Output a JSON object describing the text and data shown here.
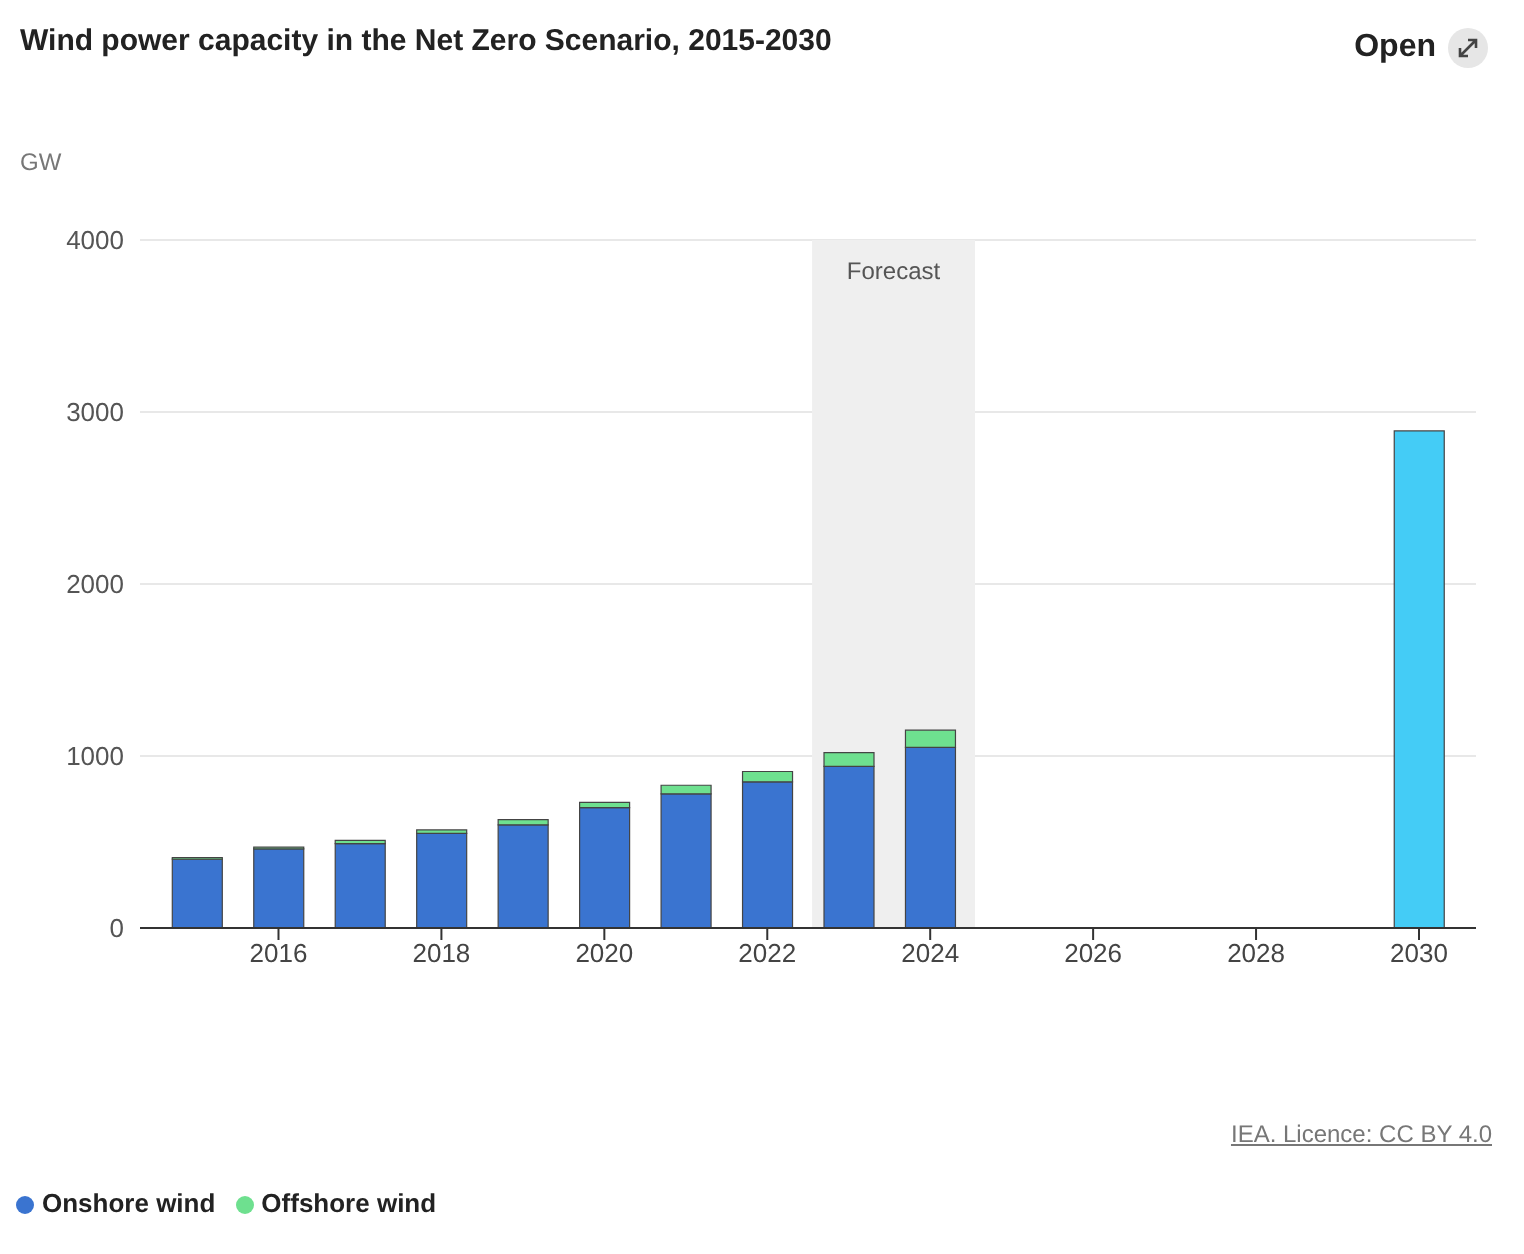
{
  "chart_data": {
    "type": "bar",
    "title": "Wind power capacity in the Net Zero Scenario, 2015-2030",
    "ylabel": "GW",
    "stacked": true,
    "x": [
      2015,
      2016,
      2017,
      2018,
      2019,
      2020,
      2021,
      2022,
      2023,
      2024,
      2030
    ],
    "series": [
      {
        "name": "Onshore wind",
        "color": "#3a74d0",
        "values": [
          400,
          460,
          490,
          550,
          600,
          700,
          780,
          850,
          940,
          1050,
          null
        ]
      },
      {
        "name": "Offshore wind",
        "color": "#6ee08f",
        "values": [
          10,
          10,
          20,
          20,
          30,
          30,
          50,
          60,
          80,
          100,
          null
        ]
      },
      {
        "color": "#44ccf6",
        "values": [
          null,
          null,
          null,
          null,
          null,
          null,
          null,
          null,
          null,
          null,
          2890
        ]
      }
    ],
    "xlim": [
      2014.3,
      2030.7
    ],
    "xticks": [
      2016,
      2018,
      2020,
      2022,
      2024,
      2026,
      2028,
      2030
    ],
    "ylim": [
      0,
      4000
    ],
    "yticks": [
      0,
      1000,
      2000,
      3000,
      4000
    ],
    "grid": "y",
    "legend": "bottom left",
    "bands": [
      {
        "axis": "x",
        "from": 2022.55,
        "to": 2024.55,
        "label": "Forecast",
        "color": "#efefef"
      }
    ],
    "annotations": [
      "Open",
      "IEA. Licence: CC BY 4.0"
    ]
  }
}
